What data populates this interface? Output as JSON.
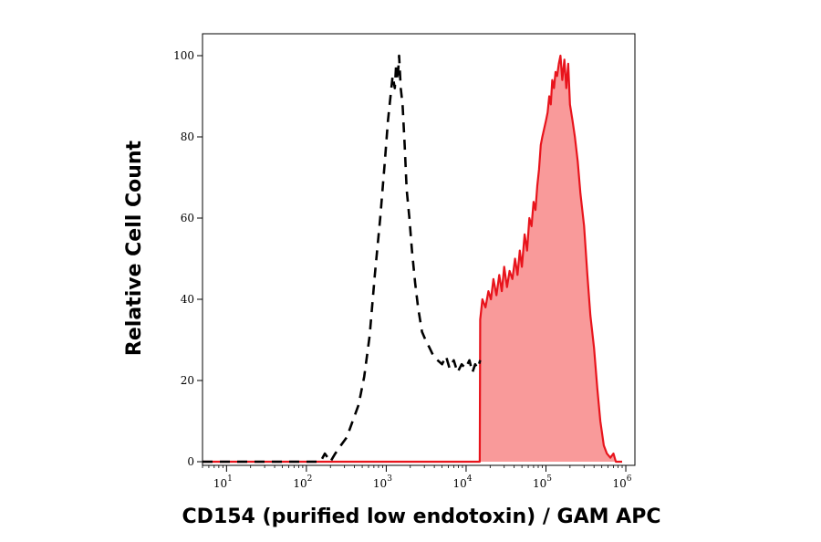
{
  "chart_data": {
    "type": "area",
    "title": "",
    "xlabel": "CD154 (purified low endotoxin) / GAM APC",
    "ylabel": "Relative Cell Count",
    "x_scale": "log",
    "xlim": [
      5,
      1300000
    ],
    "ylim": [
      0,
      105
    ],
    "x_ticks": [
      {
        "base": "10",
        "exp": "1",
        "value": 10
      },
      {
        "base": "10",
        "exp": "2",
        "value": 100
      },
      {
        "base": "10",
        "exp": "3",
        "value": 1000
      },
      {
        "base": "10",
        "exp": "4",
        "value": 10000
      },
      {
        "base": "10",
        "exp": "5",
        "value": 100000
      },
      {
        "base": "10",
        "exp": "6",
        "value": 1000000
      }
    ],
    "y_ticks": [
      {
        "label": "0",
        "value": 0
      },
      {
        "label": "20",
        "value": 20
      },
      {
        "label": "40",
        "value": 40
      },
      {
        "label": "60",
        "value": 60
      },
      {
        "label": "80",
        "value": 80
      },
      {
        "label": "100",
        "value": 100
      }
    ],
    "grid": false,
    "legend": "none",
    "series": [
      {
        "style": "dashed",
        "color": "#000000",
        "fill": "none",
        "x": [
          5,
          150,
          170,
          185,
          200,
          230,
          270,
          320,
          380,
          450,
          530,
          620,
          720,
          840,
          960,
          1050,
          1130,
          1200,
          1280,
          1330,
          1390,
          1450,
          1520,
          1600,
          1700,
          1800,
          1950,
          2100,
          2300,
          2500,
          2800,
          3100,
          3500,
          3900,
          4400,
          5000,
          5600,
          6200,
          7000,
          7800,
          8800,
          9800,
          11000,
          12000,
          13000,
          14000,
          15000
        ],
        "y": [
          0,
          0,
          2,
          1,
          0,
          2,
          4,
          6,
          10,
          14,
          21,
          31,
          46,
          60,
          74,
          84,
          90,
          95,
          92,
          98,
          94,
          100,
          92,
          88,
          78,
          67,
          60,
          52,
          44,
          38,
          32,
          30,
          28,
          26,
          25,
          24,
          26,
          23,
          25,
          22,
          24,
          23,
          25,
          22,
          24,
          23,
          25
        ]
      },
      {
        "style": "solid",
        "color": "#e8141c",
        "fill": "#f99a9a",
        "x": [
          5,
          14800,
          15000,
          16000,
          17500,
          19000,
          20500,
          22000,
          24000,
          26000,
          28000,
          30000,
          32500,
          35000,
          38000,
          41000,
          44000,
          47000,
          50000,
          54000,
          58000,
          62000,
          66000,
          70000,
          74000,
          78000,
          82000,
          86000,
          90000,
          95000,
          100000,
          105000,
          110000,
          115000,
          120000,
          126000,
          132000,
          138000,
          145000,
          152000,
          160000,
          170000,
          180000,
          190000,
          200000,
          215000,
          230000,
          250000,
          270000,
          300000,
          330000,
          360000,
          400000,
          440000,
          480000,
          530000,
          580000,
          640000,
          700000,
          750000,
          800000,
          900000
        ],
        "y": [
          0,
          0,
          35,
          40,
          38,
          42,
          40,
          45,
          41,
          46,
          42,
          48,
          43,
          47,
          45,
          50,
          46,
          52,
          48,
          56,
          52,
          60,
          58,
          64,
          62,
          68,
          72,
          78,
          80,
          82,
          84,
          86,
          90,
          88,
          94,
          92,
          96,
          95,
          98,
          100,
          94,
          99,
          92,
          98,
          88,
          84,
          80,
          74,
          66,
          58,
          46,
          36,
          28,
          18,
          10,
          4,
          2,
          1,
          2,
          0,
          0,
          0
        ]
      }
    ]
  }
}
